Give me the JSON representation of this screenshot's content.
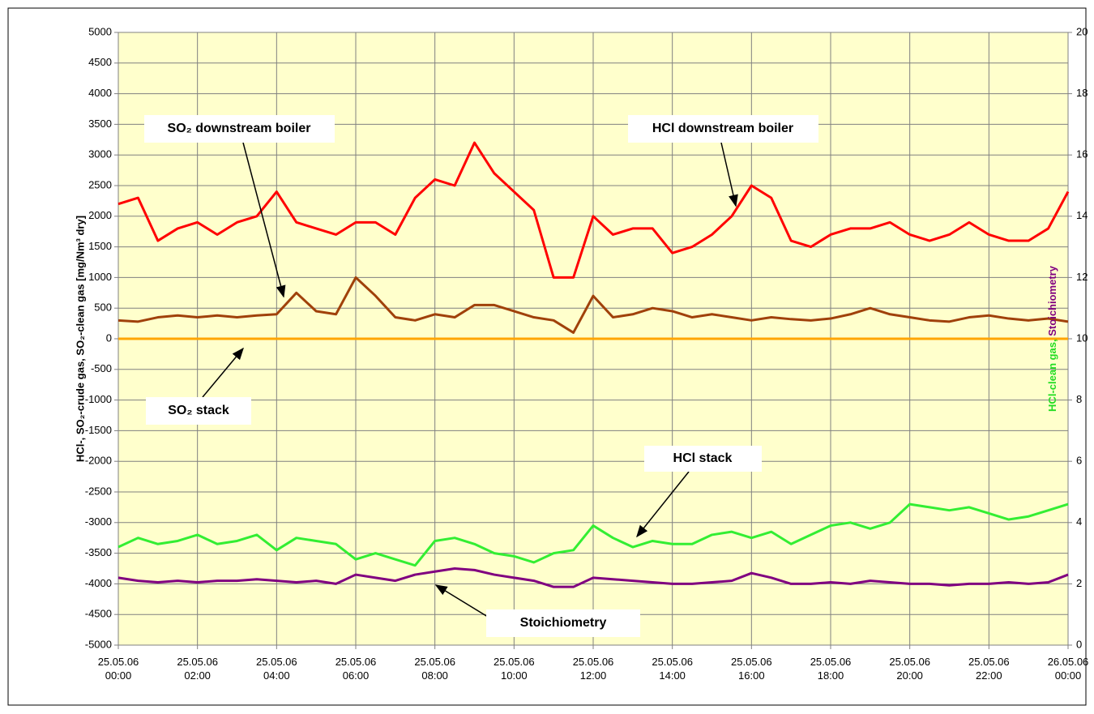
{
  "chart_data": {
    "type": "line",
    "ylabel": "HCl-, SO₂-crude gas, SO₂-clean gas [mg/Nm³ dry]",
    "y2label": [
      "HCl-clean gas,",
      "Stoichiometry"
    ],
    "y2label_colors": [
      "#22dd22",
      "#800080"
    ],
    "background": "#ffffcc",
    "grid": true,
    "x": [
      0,
      0.5,
      1,
      1.5,
      2,
      2.5,
      3,
      3.5,
      4,
      4.5,
      5,
      5.5,
      6,
      6.5,
      7,
      7.5,
      8,
      8.5,
      9,
      9.5,
      10,
      10.5,
      11,
      11.5,
      12,
      12.5,
      13,
      13.5,
      14,
      14.5,
      15,
      15.5,
      16,
      16.5,
      17,
      17.5,
      18,
      18.5,
      19,
      19.5,
      20,
      20.5,
      21,
      21.5,
      22,
      22.5,
      23,
      23.5,
      24
    ],
    "xlim": [
      0,
      24
    ],
    "xticks": [
      {
        "value": 0,
        "label": "25.05.06 00:00"
      },
      {
        "value": 2,
        "label": "25.05.06 02:00"
      },
      {
        "value": 4,
        "label": "25.05.06 04:00"
      },
      {
        "value": 6,
        "label": "25.05.06 06:00"
      },
      {
        "value": 8,
        "label": "25.05.06 08:00"
      },
      {
        "value": 10,
        "label": "25.05.06 10:00"
      },
      {
        "value": 12,
        "label": "25.05.06 12:00"
      },
      {
        "value": 14,
        "label": "25.05.06 14:00"
      },
      {
        "value": 16,
        "label": "25.05.06 16:00"
      },
      {
        "value": 18,
        "label": "25.05.06 18:00"
      },
      {
        "value": 20,
        "label": "25.05.06 20:00"
      },
      {
        "value": 22,
        "label": "25.05.06 22:00"
      },
      {
        "value": 24,
        "label": "26.05.06 00:00"
      }
    ],
    "ylim": [
      -5000,
      5000
    ],
    "yticks": [
      -5000,
      -4500,
      -4000,
      -3500,
      -3000,
      -2500,
      -2000,
      -1500,
      -1000,
      -500,
      0,
      500,
      1000,
      1500,
      2000,
      2500,
      3000,
      3500,
      4000,
      4500,
      5000
    ],
    "y2lim": [
      0,
      20
    ],
    "y2ticks": [
      0,
      2,
      4,
      6,
      8,
      10,
      12,
      14,
      16,
      18,
      20
    ],
    "series": [
      {
        "name": "HCl downstream boiler",
        "color": "#ff0000",
        "values": [
          2200,
          2300,
          1600,
          1800,
          1900,
          1700,
          1900,
          2000,
          2400,
          1900,
          1800,
          1700,
          1900,
          1900,
          1700,
          2300,
          2600,
          2500,
          3200,
          2700,
          2400,
          2100,
          1000,
          1000,
          2000,
          1700,
          1800,
          1800,
          1400,
          1500,
          1700,
          2000,
          2500,
          2300,
          1600,
          1500,
          1700,
          1800,
          1800,
          1900,
          1700,
          1600,
          1700,
          1900,
          1700,
          1600,
          1600,
          1800,
          2400
        ]
      },
      {
        "name": "SO₂ downstream boiler",
        "color": "#a0410a",
        "values": [
          300,
          280,
          350,
          380,
          350,
          380,
          350,
          380,
          400,
          750,
          450,
          400,
          1000,
          700,
          350,
          300,
          400,
          350,
          550,
          550,
          450,
          350,
          300,
          100,
          700,
          350,
          400,
          500,
          450,
          350,
          400,
          350,
          300,
          350,
          320,
          300,
          330,
          400,
          500,
          400,
          350,
          300,
          280,
          350,
          380,
          330,
          300,
          330,
          280
        ]
      },
      {
        "name": "SO₂ stack",
        "color": "#ffa500",
        "values": [
          0,
          0,
          0,
          0,
          0,
          0,
          0,
          0,
          0,
          0,
          0,
          0,
          0,
          0,
          0,
          0,
          0,
          0,
          0,
          0,
          0,
          0,
          0,
          0,
          0,
          0,
          0,
          0,
          0,
          0,
          0,
          0,
          0,
          0,
          0,
          0,
          0,
          0,
          0,
          0,
          0,
          0,
          0,
          0,
          0,
          0,
          0,
          0,
          0
        ]
      },
      {
        "name": "HCl stack",
        "color": "#33ee33",
        "axis": "y2",
        "values": [
          3.2,
          3.5,
          3.3,
          3.4,
          3.6,
          3.3,
          3.4,
          3.6,
          3.1,
          3.5,
          3.4,
          3.3,
          2.8,
          3.0,
          2.8,
          2.6,
          3.4,
          3.5,
          3.3,
          3.0,
          2.9,
          2.7,
          3.0,
          3.1,
          3.9,
          3.5,
          3.2,
          3.4,
          3.3,
          3.3,
          3.6,
          3.7,
          3.5,
          3.7,
          3.3,
          3.6,
          3.9,
          4.0,
          3.8,
          4.0,
          4.6,
          4.5,
          4.4,
          4.5,
          4.3,
          4.1,
          4.2,
          4.4,
          4.6
        ]
      },
      {
        "name": "Stoichiometry",
        "color": "#800080",
        "axis": "y2",
        "values": [
          2.2,
          2.1,
          2.05,
          2.1,
          2.05,
          2.1,
          2.1,
          2.15,
          2.1,
          2.05,
          2.1,
          2.0,
          2.3,
          2.2,
          2.1,
          2.3,
          2.4,
          2.5,
          2.45,
          2.3,
          2.2,
          2.1,
          1.9,
          1.9,
          2.2,
          2.15,
          2.1,
          2.05,
          2.0,
          2.0,
          2.05,
          2.1,
          2.35,
          2.2,
          2.0,
          2.0,
          2.05,
          2.0,
          2.1,
          2.05,
          2.0,
          2.0,
          1.95,
          2.0,
          2.0,
          2.05,
          2.0,
          2.05,
          2.3
        ]
      }
    ]
  }
}
